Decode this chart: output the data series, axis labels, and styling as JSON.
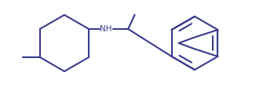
{
  "line_color": "#3a3a8c",
  "line_width": 1.5,
  "background_color": "#ffffff",
  "figsize": [
    3.49,
    1.11
  ],
  "dpi": 100,
  "nh_color": "#3a3a8c",
  "nh_text": "NH",
  "nh_fontsize": 7.5
}
